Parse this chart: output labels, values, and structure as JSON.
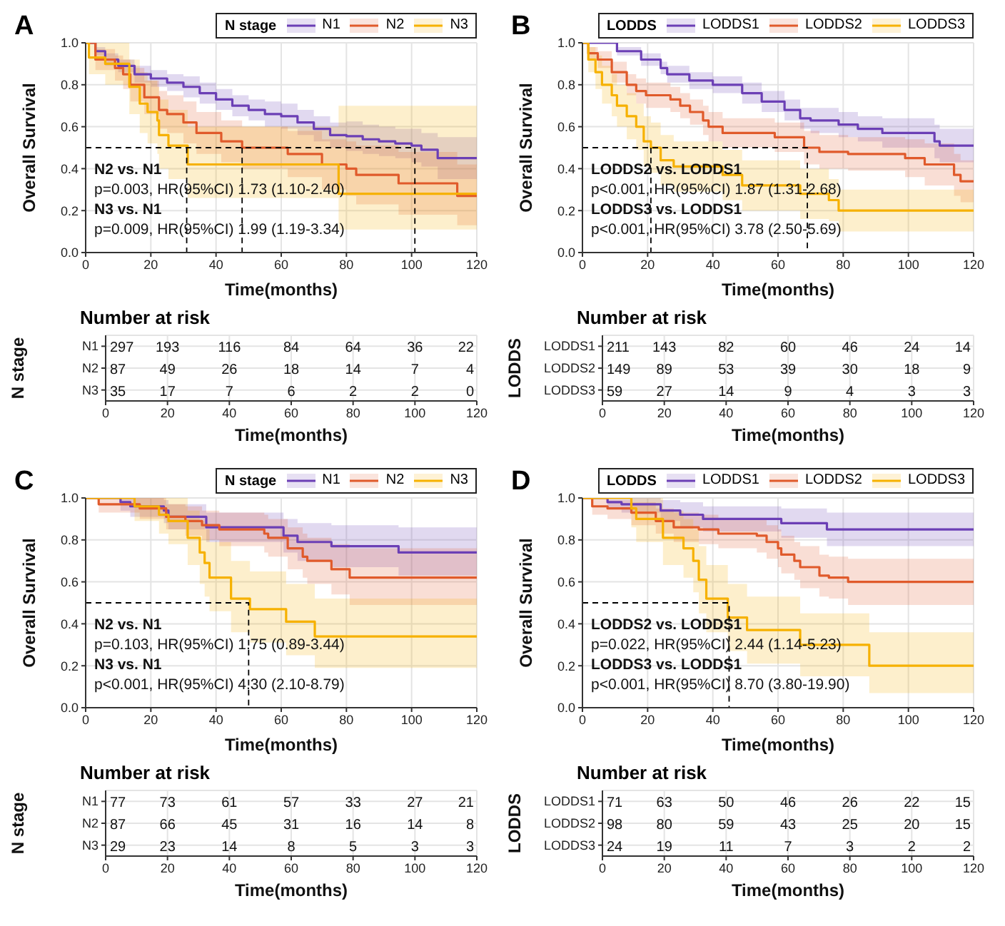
{
  "chart_data": [
    {
      "type": "step",
      "title": "A",
      "xlabel": "Time(months)",
      "ylabel": "Overall Survival",
      "legend_title": "N stage",
      "legend": "top right",
      "grid": true,
      "xlim": [
        0,
        120
      ],
      "xticks": [
        0,
        20,
        40,
        60,
        80,
        100,
        120
      ],
      "ylim": [
        0,
        1
      ],
      "yticks": [
        {
          "value": 0,
          "label": "0.0"
        },
        {
          "value": 0.2,
          "label": "0.2"
        },
        {
          "value": 0.4,
          "label": "0.4"
        },
        {
          "value": 0.6,
          "label": "0.6"
        },
        {
          "value": 0.8,
          "label": "0.8"
        },
        {
          "value": 1,
          "label": "1.0"
        }
      ],
      "annotations": [
        "N2 vs. N1",
        "p=0.003, HR(95%CI) 1.73 (1.10-2.40)",
        "N3 vs. N1",
        "p=0.009, HR(95%CI) 1.99 (1.19-3.34)"
      ],
      "series": [
        {
          "name": "N1",
          "color": "#6b3fb5",
          "x": [
            0,
            3,
            6,
            10,
            15,
            20,
            25,
            30,
            35,
            40,
            45,
            50,
            55,
            60,
            65,
            70,
            75,
            80,
            85,
            90,
            95,
            100,
            103,
            108,
            120
          ],
          "values": [
            1,
            0.96,
            0.92,
            0.89,
            0.85,
            0.83,
            0.81,
            0.79,
            0.76,
            0.73,
            0.7,
            0.68,
            0.66,
            0.65,
            0.62,
            0.59,
            0.56,
            0.555,
            0.54,
            0.53,
            0.52,
            0.51,
            0.49,
            0.45,
            0.45
          ],
          "lower": [
            1,
            0.94,
            0.89,
            0.86,
            0.81,
            0.79,
            0.77,
            0.74,
            0.71,
            0.68,
            0.65,
            0.63,
            0.6,
            0.59,
            0.56,
            0.53,
            0.5,
            0.485,
            0.47,
            0.46,
            0.45,
            0.43,
            0.41,
            0.35,
            0.35
          ],
          "upper": [
            1,
            0.98,
            0.95,
            0.92,
            0.89,
            0.87,
            0.85,
            0.84,
            0.81,
            0.78,
            0.75,
            0.73,
            0.72,
            0.71,
            0.68,
            0.65,
            0.62,
            0.625,
            0.61,
            0.6,
            0.59,
            0.59,
            0.57,
            0.55,
            0.55
          ]
        },
        {
          "name": "N2",
          "color": "#e05a2b",
          "x": [
            0,
            3,
            9,
            11.5,
            13.7,
            18,
            22.5,
            25,
            30,
            34,
            41.6,
            48,
            62,
            72.5,
            80,
            83,
            96,
            114,
            120
          ],
          "values": [
            1,
            0.92,
            0.88,
            0.85,
            0.8,
            0.74,
            0.68,
            0.66,
            0.62,
            0.57,
            0.53,
            0.5,
            0.47,
            0.42,
            0.4,
            0.37,
            0.33,
            0.27,
            0.27
          ],
          "lower": [
            1,
            0.87,
            0.82,
            0.78,
            0.72,
            0.66,
            0.59,
            0.57,
            0.52,
            0.47,
            0.43,
            0.4,
            0.36,
            0.3,
            0.27,
            0.23,
            0.18,
            0.13,
            0.13
          ],
          "upper": [
            1,
            0.97,
            0.94,
            0.92,
            0.88,
            0.82,
            0.77,
            0.75,
            0.72,
            0.67,
            0.63,
            0.6,
            0.58,
            0.54,
            0.53,
            0.51,
            0.48,
            0.42,
            0.42
          ]
        },
        {
          "name": "N3",
          "color": "#f6b100",
          "x": [
            0,
            1,
            6,
            13.4,
            16.6,
            19,
            22,
            22.5,
            25.4,
            31.3,
            77.6,
            120
          ],
          "values": [
            1,
            0.93,
            0.9,
            0.79,
            0.71,
            0.67,
            0.63,
            0.56,
            0.51,
            0.42,
            0.28,
            0.28
          ],
          "lower": [
            1,
            0.85,
            0.8,
            0.66,
            0.57,
            0.52,
            0.47,
            0.4,
            0.35,
            0.26,
            0.11,
            0.11
          ],
          "upper": [
            1,
            1,
            1,
            0.92,
            0.86,
            0.82,
            0.79,
            0.73,
            0.68,
            0.6,
            0.7,
            0.7
          ]
        },
        {
          "type": "line",
          "color": "#000000",
          "line_style": "dashed",
          "x": [
            0,
            101,
            101
          ],
          "values": [
            0.5,
            0.5,
            0
          ]
        },
        {
          "type": "line",
          "color": "#000000",
          "line_style": "dashed",
          "x": [
            31,
            31
          ],
          "values": [
            0.5,
            0
          ]
        },
        {
          "type": "line",
          "color": "#000000",
          "line_style": "dashed",
          "x": [
            48,
            48
          ],
          "values": [
            0.5,
            0
          ]
        }
      ]
    },
    {
      "type": "step",
      "title": "B",
      "xlabel": "Time(months)",
      "ylabel": "Overall Survival",
      "legend_title": "LODDS",
      "legend": "top right",
      "grid": true,
      "xlim": [
        0,
        120
      ],
      "xticks": [
        0,
        20,
        40,
        60,
        80,
        100,
        120
      ],
      "ylim": [
        0,
        1
      ],
      "yticks": [
        {
          "value": 0,
          "label": "0.0"
        },
        {
          "value": 0.2,
          "label": "0.2"
        },
        {
          "value": 0.4,
          "label": "0.4"
        },
        {
          "value": 0.6,
          "label": "0.6"
        },
        {
          "value": 0.8,
          "label": "0.8"
        },
        {
          "value": 1,
          "label": "1.0"
        }
      ],
      "annotations": [
        "LODDS2 vs. LODDS1",
        "p<0.001, HR(95%CI) 1.87 (1.31-2.68)",
        "LODDS3 vs. LODDS1",
        "p<0.001, HR(95%CI) 3.78 (2.50-5.69)"
      ],
      "series": [
        {
          "name": "LODDS1",
          "color": "#6b3fb5",
          "x": [
            0,
            10.6,
            18,
            24,
            26,
            32.8,
            40,
            49,
            55,
            62,
            66.8,
            70,
            78.6,
            84.5,
            92,
            108,
            109.6,
            120
          ],
          "values": [
            1,
            0.96,
            0.92,
            0.88,
            0.85,
            0.82,
            0.8,
            0.76,
            0.72,
            0.68,
            0.64,
            0.63,
            0.61,
            0.59,
            0.57,
            0.53,
            0.51,
            0.51
          ],
          "lower": [
            1,
            0.94,
            0.89,
            0.85,
            0.81,
            0.78,
            0.76,
            0.71,
            0.67,
            0.63,
            0.59,
            0.57,
            0.55,
            0.53,
            0.5,
            0.45,
            0.43,
            0.43
          ],
          "upper": [
            1,
            0.98,
            0.95,
            0.91,
            0.89,
            0.86,
            0.84,
            0.81,
            0.77,
            0.73,
            0.69,
            0.69,
            0.67,
            0.65,
            0.64,
            0.61,
            0.59,
            0.59
          ]
        },
        {
          "name": "LODDS2",
          "color": "#e05a2b",
          "x": [
            0,
            1.8,
            4.7,
            9,
            13.6,
            16.5,
            19.5,
            27,
            30,
            33,
            37,
            38.7,
            43,
            59,
            68,
            72.7,
            81.5,
            99,
            105,
            114,
            116,
            120
          ],
          "values": [
            1,
            0.95,
            0.92,
            0.86,
            0.8,
            0.77,
            0.75,
            0.73,
            0.7,
            0.67,
            0.63,
            0.6,
            0.57,
            0.55,
            0.5,
            0.48,
            0.47,
            0.45,
            0.42,
            0.37,
            0.34,
            0.34
          ],
          "lower": [
            1,
            0.92,
            0.88,
            0.81,
            0.75,
            0.71,
            0.69,
            0.67,
            0.64,
            0.61,
            0.56,
            0.53,
            0.5,
            0.48,
            0.42,
            0.4,
            0.39,
            0.36,
            0.32,
            0.27,
            0.24,
            0.24
          ],
          "upper": [
            1,
            0.98,
            0.96,
            0.91,
            0.85,
            0.83,
            0.81,
            0.79,
            0.76,
            0.73,
            0.7,
            0.67,
            0.64,
            0.62,
            0.58,
            0.56,
            0.55,
            0.54,
            0.52,
            0.47,
            0.44,
            0.44
          ]
        },
        {
          "name": "LODDS3",
          "color": "#f6b100",
          "x": [
            0,
            1.8,
            4,
            6,
            9,
            10.6,
            13.6,
            16.5,
            18.8,
            21,
            24,
            28,
            43,
            49,
            66.8,
            75.6,
            78.6,
            120
          ],
          "values": [
            1,
            0.92,
            0.86,
            0.8,
            0.75,
            0.7,
            0.65,
            0.6,
            0.53,
            0.5,
            0.44,
            0.41,
            0.37,
            0.32,
            0.28,
            0.25,
            0.2,
            0.2
          ],
          "lower": [
            1,
            0.86,
            0.78,
            0.71,
            0.65,
            0.6,
            0.54,
            0.49,
            0.41,
            0.38,
            0.32,
            0.29,
            0.25,
            0.2,
            0.16,
            0.15,
            0.1,
            0.1
          ],
          "upper": [
            1,
            0.98,
            0.94,
            0.89,
            0.85,
            0.8,
            0.76,
            0.71,
            0.65,
            0.62,
            0.56,
            0.53,
            0.49,
            0.44,
            0.4,
            0.35,
            0.3,
            0.3
          ]
        },
        {
          "type": "line",
          "color": "#000000",
          "line_style": "dashed",
          "x": [
            0,
            69,
            69
          ],
          "values": [
            0.5,
            0.5,
            0
          ]
        },
        {
          "type": "line",
          "color": "#000000",
          "line_style": "dashed",
          "x": [
            21,
            21
          ],
          "values": [
            0.5,
            0
          ]
        }
      ]
    },
    {
      "type": "heatmap",
      "title": "Number at risk",
      "xlabel": "Time(months)",
      "ylabel": "N stage",
      "grid": true,
      "data_labels": true,
      "xlim": [
        0,
        120
      ],
      "xticks": [
        0,
        20,
        40,
        60,
        80,
        100,
        120
      ],
      "x": [
        0,
        20,
        40,
        60,
        80,
        100,
        120
      ],
      "y_categories": [
        "N1",
        "N2",
        "N3"
      ],
      "cells": [
        [
          297,
          193,
          116,
          84,
          64,
          36,
          22
        ],
        [
          87,
          49,
          26,
          18,
          14,
          7,
          4
        ],
        [
          35,
          17,
          7,
          6,
          2,
          2,
          0
        ]
      ]
    },
    {
      "type": "heatmap",
      "title": "Number at risk",
      "xlabel": "Time(months)",
      "ylabel": "LODDS",
      "grid": true,
      "data_labels": true,
      "xlim": [
        0,
        120
      ],
      "xticks": [
        0,
        20,
        40,
        60,
        80,
        100,
        120
      ],
      "x": [
        0,
        20,
        40,
        60,
        80,
        100,
        120
      ],
      "y_categories": [
        "LODDS1",
        "LODDS2",
        "LODDS3"
      ],
      "cells": [
        [
          211,
          143,
          82,
          60,
          46,
          24,
          14
        ],
        [
          149,
          89,
          53,
          39,
          30,
          18,
          9
        ],
        [
          59,
          27,
          14,
          9,
          4,
          3,
          3
        ]
      ]
    },
    {
      "type": "step",
      "title": "C",
      "xlabel": "Time(months)",
      "ylabel": "Overall Survival",
      "legend_title": "N stage",
      "legend": "top right",
      "grid": true,
      "xlim": [
        0,
        120
      ],
      "xticks": [
        0,
        20,
        40,
        60,
        80,
        100,
        120
      ],
      "ylim": [
        0,
        1
      ],
      "yticks": [
        {
          "value": 0,
          "label": "0.0"
        },
        {
          "value": 0.2,
          "label": "0.2"
        },
        {
          "value": 0.4,
          "label": "0.4"
        },
        {
          "value": 0.6,
          "label": "0.6"
        },
        {
          "value": 0.8,
          "label": "0.8"
        },
        {
          "value": 1,
          "label": "1.0"
        }
      ],
      "annotations": [
        "N2 vs. N1",
        "p=0.103, HR(95%CI) 1.75 (0.89-3.44)",
        "N3 vs. N1",
        "p<0.001, HR(95%CI) 4.30 (2.10-8.79)"
      ],
      "series": [
        {
          "name": "N1",
          "color": "#6b3fb5",
          "x": [
            0,
            10.7,
            13.7,
            24,
            25.4,
            37,
            60.7,
            65,
            75.4,
            96,
            120
          ],
          "values": [
            1,
            0.98,
            0.96,
            0.94,
            0.91,
            0.86,
            0.82,
            0.79,
            0.77,
            0.74,
            0.74
          ],
          "lower": [
            1,
            0.94,
            0.91,
            0.88,
            0.85,
            0.79,
            0.74,
            0.7,
            0.67,
            0.63,
            0.63
          ],
          "upper": [
            1,
            1,
            1,
            0.99,
            0.97,
            0.93,
            0.9,
            0.88,
            0.87,
            0.86,
            0.86
          ]
        },
        {
          "name": "N2",
          "color": "#e05a2b",
          "x": [
            0,
            4,
            16.6,
            24.7,
            30.6,
            35.7,
            41,
            54.8,
            56,
            62,
            66.6,
            68,
            75.4,
            81,
            120
          ],
          "values": [
            1,
            0.97,
            0.95,
            0.91,
            0.89,
            0.87,
            0.85,
            0.83,
            0.81,
            0.76,
            0.72,
            0.7,
            0.66,
            0.62,
            0.62
          ],
          "lower": [
            1,
            0.93,
            0.9,
            0.85,
            0.82,
            0.8,
            0.77,
            0.74,
            0.72,
            0.66,
            0.62,
            0.59,
            0.54,
            0.49,
            0.49
          ],
          "upper": [
            1,
            1,
            1,
            0.97,
            0.96,
            0.94,
            0.93,
            0.92,
            0.9,
            0.86,
            0.83,
            0.81,
            0.78,
            0.76,
            0.76
          ]
        },
        {
          "name": "N3",
          "color": "#f6b100",
          "x": [
            0,
            15,
            22.5,
            25.4,
            31.3,
            35,
            36.5,
            38,
            44.6,
            50.4,
            61.5,
            70.3,
            120
          ],
          "values": [
            1,
            0.96,
            0.92,
            0.89,
            0.81,
            0.74,
            0.69,
            0.62,
            0.52,
            0.47,
            0.41,
            0.34,
            0.34
          ],
          "lower": [
            1,
            0.89,
            0.83,
            0.78,
            0.68,
            0.59,
            0.53,
            0.46,
            0.36,
            0.31,
            0.25,
            0.19,
            0.19
          ],
          "upper": [
            1,
            1,
            1,
            1,
            0.94,
            0.89,
            0.85,
            0.79,
            0.7,
            0.65,
            0.59,
            0.52,
            0.52
          ]
        },
        {
          "type": "line",
          "color": "#000000",
          "line_style": "dashed",
          "x": [
            0,
            50,
            50
          ],
          "values": [
            0.5,
            0.5,
            0
          ]
        }
      ]
    },
    {
      "type": "step",
      "title": "D",
      "xlabel": "Time(months)",
      "ylabel": "Overall Survival",
      "legend_title": "LODDS",
      "legend": "top right",
      "grid": true,
      "xlim": [
        0,
        120
      ],
      "xticks": [
        0,
        20,
        40,
        60,
        80,
        100,
        120
      ],
      "ylim": [
        0,
        1
      ],
      "yticks": [
        {
          "value": 0,
          "label": "0.0"
        },
        {
          "value": 0.2,
          "label": "0.2"
        },
        {
          "value": 0.4,
          "label": "0.4"
        },
        {
          "value": 0.6,
          "label": "0.6"
        },
        {
          "value": 0.8,
          "label": "0.8"
        },
        {
          "value": 1,
          "label": "1.0"
        }
      ],
      "annotations": [
        "LODDS2 vs. LODDS1",
        "p=0.022, HR(95%CI) 2.44 (1.14-5.23)",
        "LODDS3 vs. LODDS1",
        "p<0.001, HR(95%CI) 8.70 (3.80-19.90)"
      ],
      "series": [
        {
          "name": "LODDS1",
          "color": "#6b3fb5",
          "x": [
            0,
            7.7,
            12,
            24,
            30,
            37,
            61,
            75,
            120
          ],
          "values": [
            1,
            0.98,
            0.97,
            0.94,
            0.92,
            0.9,
            0.88,
            0.85,
            0.85
          ],
          "lower": [
            1,
            0.95,
            0.93,
            0.89,
            0.86,
            0.84,
            0.81,
            0.77,
            0.77
          ],
          "upper": [
            1,
            1,
            1,
            0.99,
            0.98,
            0.96,
            0.95,
            0.93,
            0.93
          ]
        },
        {
          "name": "LODDS2",
          "color": "#e05a2b",
          "x": [
            0,
            3,
            7.7,
            15,
            22.5,
            28,
            35.7,
            41.7,
            53.5,
            56.5,
            60,
            61,
            65,
            66.8,
            72.7,
            75.6,
            81.5,
            120
          ],
          "values": [
            1,
            0.96,
            0.95,
            0.93,
            0.89,
            0.86,
            0.85,
            0.83,
            0.82,
            0.79,
            0.76,
            0.73,
            0.7,
            0.67,
            0.63,
            0.62,
            0.6,
            0.6
          ],
          "lower": [
            1,
            0.92,
            0.9,
            0.87,
            0.83,
            0.79,
            0.78,
            0.76,
            0.74,
            0.71,
            0.67,
            0.64,
            0.61,
            0.57,
            0.53,
            0.52,
            0.49,
            0.49
          ],
          "upper": [
            1,
            1,
            0.99,
            0.98,
            0.95,
            0.93,
            0.92,
            0.9,
            0.9,
            0.87,
            0.85,
            0.82,
            0.79,
            0.77,
            0.73,
            0.72,
            0.71,
            0.71
          ]
        },
        {
          "name": "LODDS3",
          "color": "#f6b100",
          "x": [
            0,
            15,
            16.5,
            24.7,
            31,
            34,
            35.7,
            38,
            44.6,
            50.5,
            66.8,
            88,
            120
          ],
          "values": [
            1,
            0.95,
            0.9,
            0.81,
            0.76,
            0.7,
            0.61,
            0.52,
            0.43,
            0.37,
            0.3,
            0.2,
            0.2
          ],
          "lower": [
            1,
            0.86,
            0.79,
            0.68,
            0.62,
            0.55,
            0.45,
            0.36,
            0.27,
            0.21,
            0.15,
            0.07,
            0.07
          ],
          "upper": [
            1,
            1,
            1,
            0.94,
            0.9,
            0.85,
            0.77,
            0.68,
            0.59,
            0.53,
            0.45,
            0.36,
            0.36
          ]
        },
        {
          "type": "line",
          "color": "#000000",
          "line_style": "dashed",
          "x": [
            0,
            45,
            45
          ],
          "values": [
            0.5,
            0.5,
            0
          ]
        }
      ]
    },
    {
      "type": "heatmap",
      "title": "Number at risk",
      "xlabel": "Time(months)",
      "ylabel": "N stage",
      "grid": true,
      "data_labels": true,
      "xlim": [
        0,
        120
      ],
      "xticks": [
        0,
        20,
        40,
        60,
        80,
        100,
        120
      ],
      "x": [
        0,
        20,
        40,
        60,
        80,
        100,
        120
      ],
      "y_categories": [
        "N1",
        "N2",
        "N3"
      ],
      "cells": [
        [
          77,
          73,
          61,
          57,
          33,
          27,
          21
        ],
        [
          87,
          66,
          45,
          31,
          16,
          14,
          8
        ],
        [
          29,
          23,
          14,
          8,
          5,
          3,
          3
        ]
      ]
    },
    {
      "type": "heatmap",
      "title": "Number at risk",
      "xlabel": "Time(months)",
      "ylabel": "LODDS",
      "grid": true,
      "data_labels": true,
      "xlim": [
        0,
        120
      ],
      "xticks": [
        0,
        20,
        40,
        60,
        80,
        100,
        120
      ],
      "x": [
        0,
        20,
        40,
        60,
        80,
        100,
        120
      ],
      "y_categories": [
        "LODDS1",
        "LODDS2",
        "LODDS3"
      ],
      "cells": [
        [
          71,
          63,
          50,
          46,
          26,
          22,
          15
        ],
        [
          98,
          80,
          59,
          43,
          25,
          20,
          15
        ],
        [
          24,
          19,
          11,
          7,
          3,
          2,
          2
        ]
      ]
    }
  ]
}
